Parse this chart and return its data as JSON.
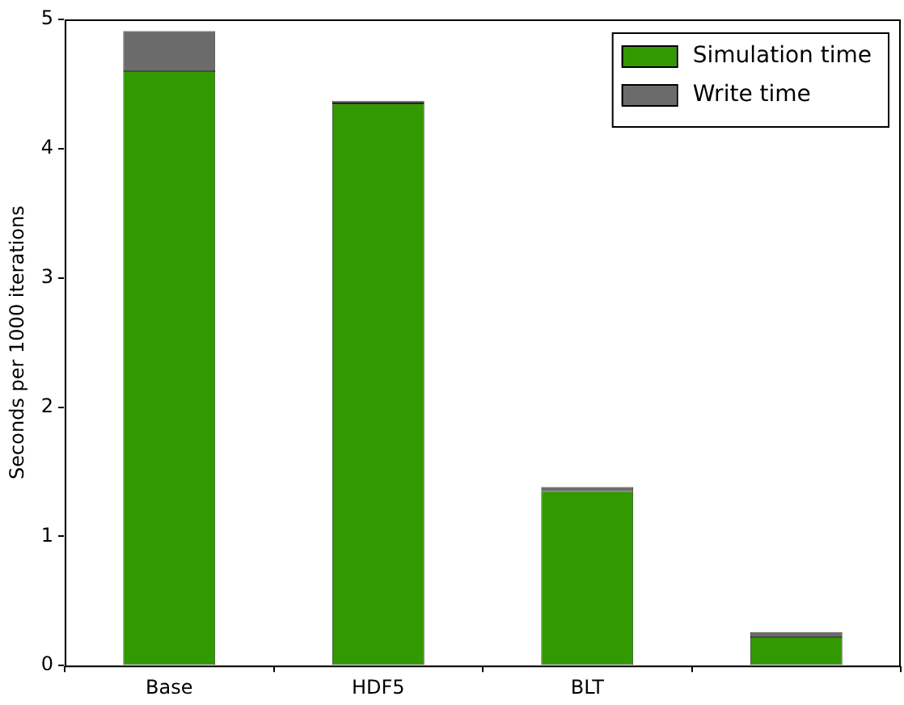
{
  "chart_data": {
    "type": "bar",
    "ylabel": "Seconds per 1000 iterations",
    "categories": [
      "Base",
      "HDF5",
      "BLT",
      null
    ],
    "stacked": true,
    "series": [
      {
        "name": "Simulation time",
        "color": "#339900",
        "values": [
          4.6,
          4.35,
          1.35,
          0.22
        ]
      },
      {
        "name": "Write time",
        "color": "#6b6b6b",
        "values": [
          0.31,
          0.02,
          0.03,
          0.04
        ]
      }
    ],
    "ylim": [
      0,
      5
    ],
    "yticks": [
      0,
      1,
      2,
      3,
      4,
      5
    ],
    "grid": false,
    "legend": "top right"
  }
}
